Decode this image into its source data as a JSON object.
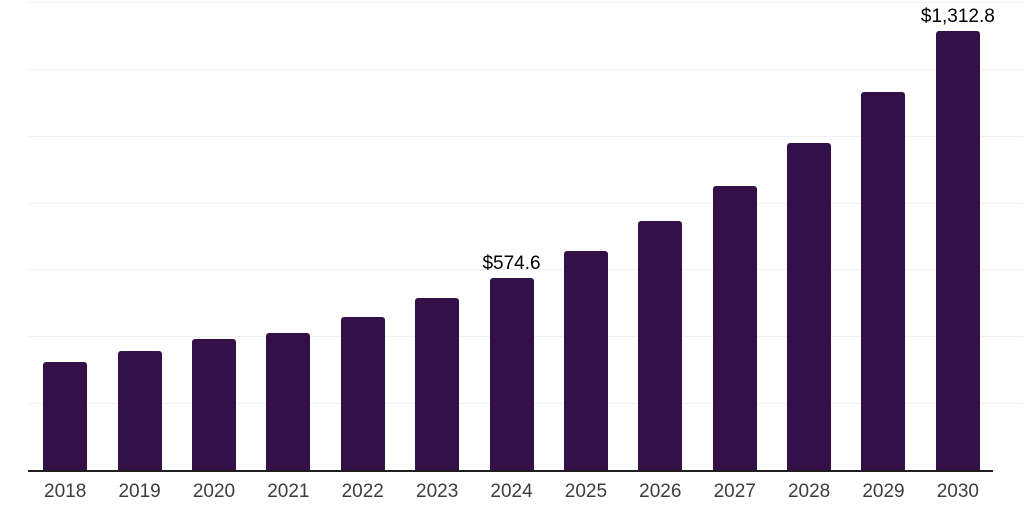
{
  "chart_data": {
    "type": "bar",
    "title": "",
    "xlabel": "",
    "ylabel": "",
    "categories": [
      "2018",
      "2019",
      "2020",
      "2021",
      "2022",
      "2023",
      "2024",
      "2025",
      "2026",
      "2027",
      "2028",
      "2029",
      "2030"
    ],
    "values": [
      324.5,
      355.5,
      392.0,
      409.5,
      458.5,
      513.5,
      574.6,
      656.0,
      744.0,
      851.0,
      978.0,
      1131.0,
      1312.8
    ],
    "value_labels": [
      {
        "category": "2024",
        "text": "$574.6"
      },
      {
        "category": "2030",
        "text": "$1,312.8"
      }
    ],
    "ylim": [
      0,
      1400
    ],
    "gridline_step": 200,
    "grid": "horizontal",
    "legend_position": "none",
    "y_axis_labels_visible": false
  },
  "style": {
    "background": "#ffffff",
    "bar_color": "#331148",
    "gridline_color": "#f1f1f1",
    "axis_line_color": "#1f1f1f",
    "tick_label_color": "#3d3d3d",
    "value_label_color": "#000000"
  }
}
